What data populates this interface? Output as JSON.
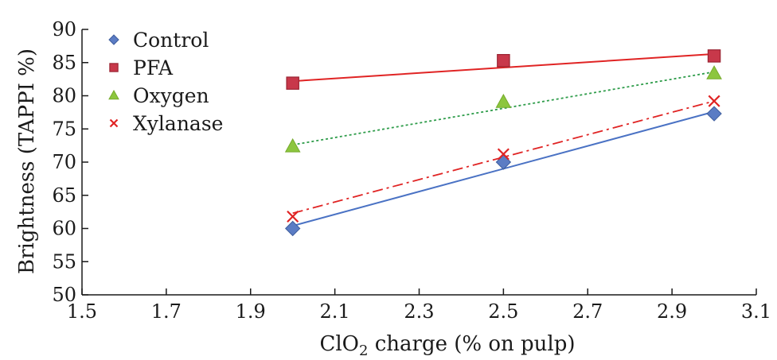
{
  "chart_data": {
    "type": "scatter",
    "x_label_main": "ClO",
    "x_label_sub": "2",
    "x_label_rest": " charge (% on pulp)",
    "ylabel": "Brightness (TAPPI %)",
    "xlim": [
      1.5,
      3.1
    ],
    "ylim": [
      50,
      90
    ],
    "x_ticks": [
      "1.5",
      "1.7",
      "1.9",
      "2.1",
      "2.3",
      "2.5",
      "2.7",
      "2.9",
      "3.1"
    ],
    "y_ticks": [
      "50",
      "55",
      "60",
      "65",
      "70",
      "75",
      "80",
      "85",
      "90"
    ],
    "grid": false,
    "legend_position": "top-left",
    "series": [
      {
        "name": "Control",
        "marker": "diamond",
        "color": "#5b7cc4",
        "line_color": "#4a72c4",
        "line_style": "solid",
        "x": [
          2.0,
          2.5,
          3.0
        ],
        "y": [
          60.0,
          70.0,
          77.3
        ],
        "trend": [
          [
            2.0,
            60.4
          ],
          [
            3.0,
            77.6
          ]
        ]
      },
      {
        "name": "PFA",
        "marker": "square",
        "color": "#c8384a",
        "line_color": "#e02424",
        "line_style": "solid",
        "x": [
          2.0,
          2.5,
          3.0
        ],
        "y": [
          81.9,
          85.3,
          86.0
        ],
        "trend": [
          [
            2.0,
            82.2
          ],
          [
            3.0,
            86.3
          ]
        ]
      },
      {
        "name": "Oxygen",
        "marker": "triangle",
        "color": "#8cc63e",
        "line_color": "#2e9c4a",
        "line_style": "dotted",
        "x": [
          2.0,
          2.5,
          3.0
        ],
        "y": [
          72.4,
          79.1,
          83.4
        ],
        "trend": [
          [
            2.0,
            72.6
          ],
          [
            3.0,
            83.6
          ]
        ]
      },
      {
        "name": "Xylanase",
        "marker": "x",
        "color": "#e02424",
        "line_color": "#e02424",
        "line_style": "dashdot",
        "x": [
          2.0,
          2.5,
          3.0
        ],
        "y": [
          61.8,
          71.2,
          79.2
        ],
        "trend": [
          [
            2.0,
            62.3
          ],
          [
            3.0,
            79.2
          ]
        ]
      }
    ]
  }
}
